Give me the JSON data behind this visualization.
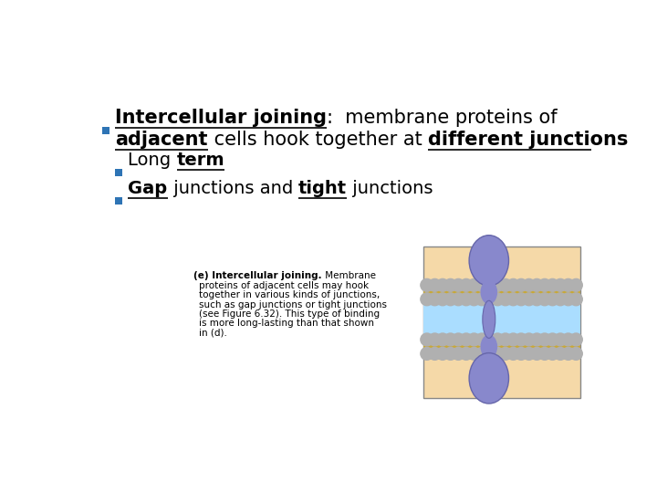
{
  "bg_color": "#ffffff",
  "bullet_color": "#2e74b5",
  "text_color": "#000000",
  "line1_bold_underline": "Intercellular joining",
  "line1_plain": ":  membrane proteins of",
  "line2_bold_start": "adjacent",
  "line2_plain": " cells hook together at ",
  "line2_bold_end": "different junctions",
  "sub1_plain": "Long ",
  "sub1_underline": "term",
  "sub2_bold": "Gap",
  "sub2_plain": " junctions and ",
  "sub2_underline": "tight",
  "sub2_plain2": " junctions",
  "caption_bold": "(e) Intercellular joining.",
  "caption_lines": [
    " Membrane",
    "proteins of adjacent cells may hook",
    "together in various kinds of junctions,",
    "such as gap junctions or tight junctions",
    "(see Figure 6.32). This type of binding",
    "is more long-lasting than that shown",
    "in (d)."
  ],
  "membrane_bg": "#f5d9a8",
  "membrane_stripe_gold": "#c8a838",
  "membrane_stripe_gray": "#b0b0b0",
  "protein_color": "#8888cc",
  "protein_shadow": "#6666aa",
  "gap_color": "#aaddff",
  "border_color": "#888888"
}
